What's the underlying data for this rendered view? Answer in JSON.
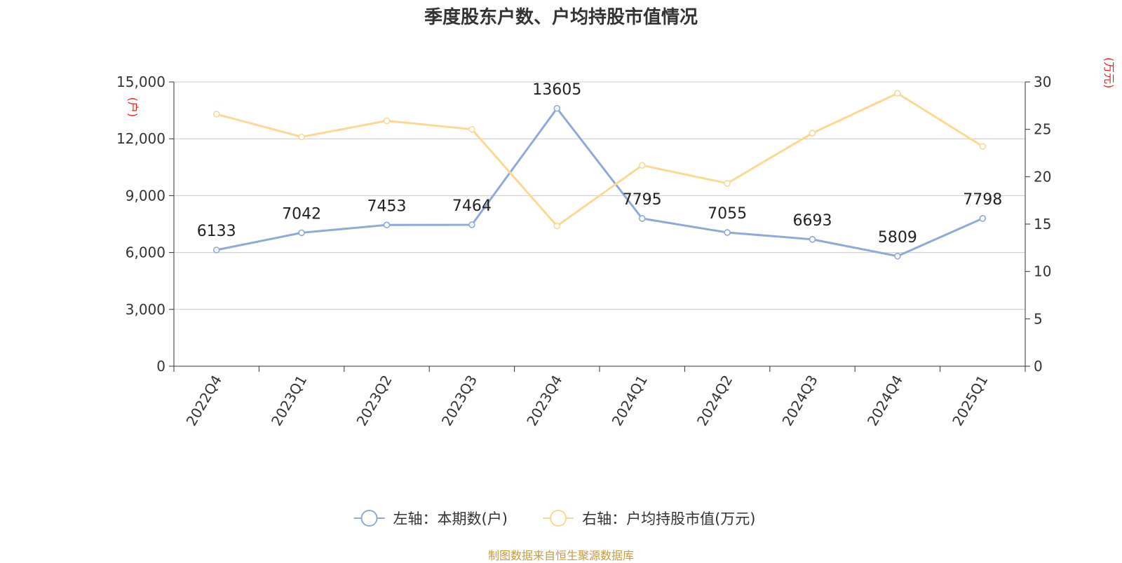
{
  "title": "季度股东户数、户均持股市值情况",
  "source": "制图数据来自恒生聚源数据库",
  "chart_data": {
    "type": "line",
    "categories": [
      "2022Q4",
      "2023Q1",
      "2023Q2",
      "2023Q3",
      "2023Q4",
      "2024Q1",
      "2024Q2",
      "2024Q3",
      "2024Q4",
      "2025Q1"
    ],
    "left_axis": {
      "unit": "(户)",
      "range": [
        0,
        15000
      ],
      "ticks": [
        0,
        3000,
        6000,
        9000,
        12000,
        15000
      ],
      "tick_labels": [
        "0",
        "3,000",
        "6,000",
        "9,000",
        "12,000",
        "15,000"
      ]
    },
    "right_axis": {
      "unit": "(万元)",
      "range": [
        0,
        30
      ],
      "ticks": [
        0,
        5,
        10,
        15,
        20,
        25,
        30
      ],
      "tick_labels": [
        "0",
        "5",
        "10",
        "15",
        "20",
        "25",
        "30"
      ]
    },
    "series": [
      {
        "name": "左轴：本期数(户)",
        "axis": "left",
        "color": "#8eaadb",
        "values": [
          6133,
          7042,
          7453,
          7464,
          13605,
          7795,
          7055,
          6693,
          5809,
          7798
        ],
        "data_labels": [
          "6133",
          "7042",
          "7453",
          "7464",
          "13605",
          "7795",
          "7055",
          "6693",
          "5809",
          "7798"
        ]
      },
      {
        "name": "右轴：户均持股市值(万元)",
        "axis": "right",
        "color": "#fcd992",
        "values": [
          26.6,
          24.2,
          25.9,
          25.0,
          14.8,
          21.2,
          19.3,
          24.6,
          28.8,
          23.2
        ]
      }
    ],
    "grid": true,
    "legend_position": "bottom-center"
  }
}
